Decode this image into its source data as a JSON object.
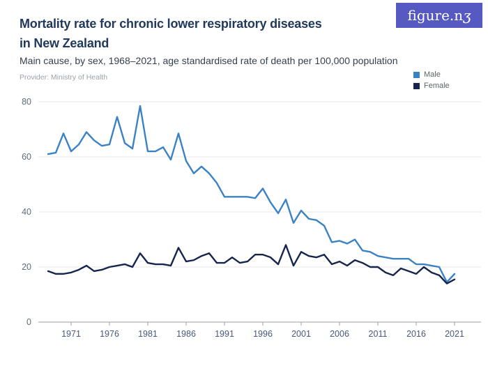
{
  "logo": {
    "text_main": "figure.n",
    "text_z": "ʒ"
  },
  "header": {
    "title_line1": "Mortality rate for chronic lower respiratory diseases",
    "title_line2": "in New Zealand",
    "subtitle": "Main cause, by sex, 1968–2021, age standardised rate of death per 100,000 population",
    "provider": "Provider: Ministry of Health"
  },
  "legend": [
    {
      "label": "Male",
      "color": "#3b82c4"
    },
    {
      "label": "Female",
      "color": "#16254e"
    }
  ],
  "chart_data": {
    "type": "line",
    "title": "Mortality rate for chronic lower respiratory diseases in New Zealand",
    "xlabel": "",
    "ylabel": "Age standardised rate of death per 100,000 population",
    "ylim": [
      0,
      80
    ],
    "yticks": [
      0,
      20,
      40,
      60,
      80
    ],
    "xticks": [
      1971,
      1976,
      1981,
      1986,
      1991,
      1996,
      2001,
      2006,
      2011,
      2016,
      2021
    ],
    "grid": "horizontal",
    "legend_position": "top-right",
    "x": [
      1968,
      1969,
      1970,
      1971,
      1972,
      1973,
      1974,
      1975,
      1976,
      1977,
      1978,
      1979,
      1980,
      1981,
      1982,
      1983,
      1984,
      1985,
      1986,
      1987,
      1988,
      1989,
      1990,
      1991,
      1992,
      1993,
      1994,
      1995,
      1996,
      1997,
      1998,
      1999,
      2000,
      2001,
      2002,
      2003,
      2004,
      2005,
      2006,
      2007,
      2008,
      2009,
      2010,
      2011,
      2012,
      2013,
      2014,
      2015,
      2016,
      2017,
      2018,
      2019,
      2020,
      2021
    ],
    "series": [
      {
        "name": "Male",
        "color": "#3b82c4",
        "values": [
          61,
          61.5,
          68.5,
          62,
          64.5,
          69,
          66,
          64,
          64.5,
          74.5,
          65,
          63,
          78.5,
          62,
          62,
          63.5,
          59,
          68.5,
          58.5,
          54,
          56.5,
          54,
          50.5,
          45.5,
          45.5,
          45.5,
          45.5,
          45,
          48.5,
          43.5,
          39.5,
          44.5,
          36,
          40.5,
          37.5,
          37,
          35,
          29,
          29.5,
          28.5,
          30,
          26,
          25.5,
          24,
          23.5,
          23,
          23,
          23,
          21,
          21,
          20.5,
          20,
          14.5,
          17.5
        ]
      },
      {
        "name": "Female",
        "color": "#16254e",
        "values": [
          18.5,
          17.5,
          17.5,
          18,
          19,
          20.5,
          18.5,
          19,
          20,
          20.5,
          21,
          20,
          25,
          21.5,
          21,
          21,
          20.5,
          27,
          22,
          22.5,
          24,
          25,
          21.5,
          21.5,
          23.5,
          21.5,
          22,
          24.5,
          24.5,
          23.5,
          21,
          28,
          20.5,
          25.5,
          24,
          23.5,
          24.5,
          21,
          22,
          20.5,
          22.5,
          21.5,
          20,
          20,
          18,
          17,
          19.5,
          18.5,
          17.5,
          20,
          18,
          17,
          14,
          15.5
        ]
      }
    ]
  }
}
